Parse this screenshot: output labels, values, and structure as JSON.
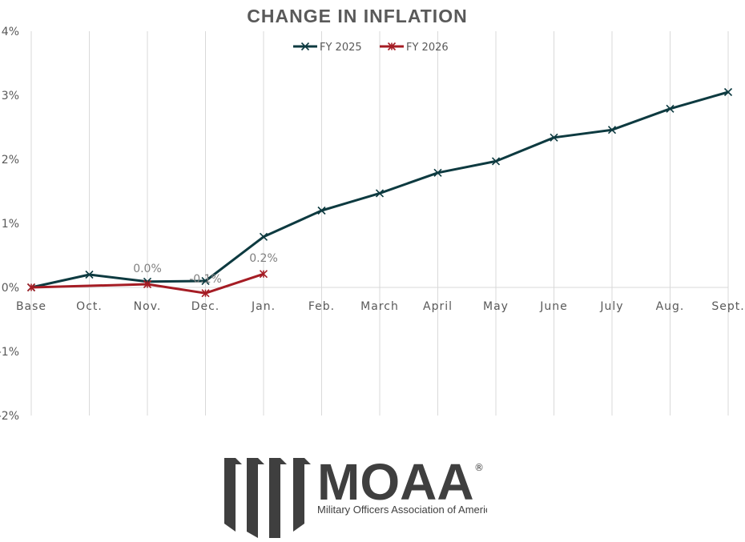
{
  "chart_data": {
    "type": "line",
    "title": "CHANGE IN INFLATION",
    "categories": [
      "Base",
      "Oct.",
      "Nov.",
      "Dec.",
      "Jan.",
      "Feb.",
      "March",
      "April",
      "May",
      "June",
      "July",
      "Aug.",
      "Sept."
    ],
    "ylim": [
      -2,
      4
    ],
    "yticks": [
      "-2%",
      "-1%",
      "0%",
      "1%",
      "2%",
      "3%",
      "4%"
    ],
    "ytick_values": [
      -2,
      -1,
      0,
      1,
      2,
      3,
      4
    ],
    "grid": "vertical",
    "legend": "top-center",
    "series": [
      {
        "name": "FY 2025",
        "color": "#0d3a40",
        "values": [
          0,
          0.2,
          0.09,
          0.1,
          0.79,
          1.2,
          1.47,
          1.79,
          1.97,
          2.34,
          2.46,
          2.79,
          3.05
        ]
      },
      {
        "name": "FY 2026",
        "color": "#a51c24",
        "values": [
          0,
          null,
          0.05,
          -0.09,
          0.21,
          null,
          null,
          null,
          null,
          null,
          null,
          null,
          null
        ],
        "data_labels": [
          null,
          null,
          "0.0%",
          "-0.1%",
          "0.2%",
          null,
          null,
          null,
          null,
          null,
          null,
          null,
          null
        ]
      }
    ]
  },
  "logo": {
    "name": "MOAA",
    "registered": "®",
    "tagline": "Military Officers Association of America"
  }
}
